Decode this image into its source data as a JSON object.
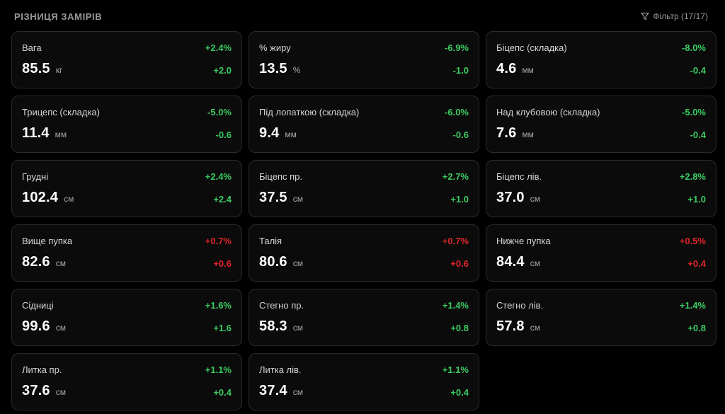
{
  "header": {
    "title": "РІЗНИЦЯ ЗАМІРІВ",
    "filter_label": "Фільтр (17/17)",
    "filter_icon": "filter-icon"
  },
  "colors": {
    "background": "#000000",
    "card": "#0b0b0b",
    "positive": "#3ccb63",
    "negative": "#e0262a"
  },
  "cards": [
    {
      "label": "Вага",
      "value": "85.5",
      "unit": "кг",
      "pct": "+2.4%",
      "delta": "+2.0",
      "tone": "pos"
    },
    {
      "label": "% жиру",
      "value": "13.5",
      "unit": "%",
      "pct": "-6.9%",
      "delta": "-1.0",
      "tone": "pos"
    },
    {
      "label": "Біцепс (складка)",
      "value": "4.6",
      "unit": "мм",
      "pct": "-8.0%",
      "delta": "-0.4",
      "tone": "pos"
    },
    {
      "label": "Трицепс (складка)",
      "value": "11.4",
      "unit": "мм",
      "pct": "-5.0%",
      "delta": "-0.6",
      "tone": "pos"
    },
    {
      "label": "Під лопаткою (складка)",
      "value": "9.4",
      "unit": "мм",
      "pct": "-6.0%",
      "delta": "-0.6",
      "tone": "pos"
    },
    {
      "label": "Над клубовою (складка)",
      "value": "7.6",
      "unit": "мм",
      "pct": "-5.0%",
      "delta": "-0.4",
      "tone": "pos"
    },
    {
      "label": "Грудні",
      "value": "102.4",
      "unit": "см",
      "pct": "+2.4%",
      "delta": "+2.4",
      "tone": "pos"
    },
    {
      "label": "Біцепс пр.",
      "value": "37.5",
      "unit": "см",
      "pct": "+2.7%",
      "delta": "+1.0",
      "tone": "pos"
    },
    {
      "label": "Біцепс лів.",
      "value": "37.0",
      "unit": "см",
      "pct": "+2.8%",
      "delta": "+1.0",
      "tone": "pos"
    },
    {
      "label": "Вище пупка",
      "value": "82.6",
      "unit": "см",
      "pct": "+0.7%",
      "delta": "+0.6",
      "tone": "neg"
    },
    {
      "label": "Талія",
      "value": "80.6",
      "unit": "см",
      "pct": "+0.7%",
      "delta": "+0.6",
      "tone": "neg"
    },
    {
      "label": "Нижче пупка",
      "value": "84.4",
      "unit": "см",
      "pct": "+0.5%",
      "delta": "+0.4",
      "tone": "neg"
    },
    {
      "label": "Сідниці",
      "value": "99.6",
      "unit": "см",
      "pct": "+1.6%",
      "delta": "+1.6",
      "tone": "pos"
    },
    {
      "label": "Стегно пр.",
      "value": "58.3",
      "unit": "см",
      "pct": "+1.4%",
      "delta": "+0.8",
      "tone": "pos"
    },
    {
      "label": "Стегно лів.",
      "value": "57.8",
      "unit": "см",
      "pct": "+1.4%",
      "delta": "+0.8",
      "tone": "pos"
    },
    {
      "label": "Литка пр.",
      "value": "37.6",
      "unit": "см",
      "pct": "+1.1%",
      "delta": "+0.4",
      "tone": "pos"
    },
    {
      "label": "Литка лів.",
      "value": "37.4",
      "unit": "см",
      "pct": "+1.1%",
      "delta": "+0.4",
      "tone": "pos"
    }
  ]
}
